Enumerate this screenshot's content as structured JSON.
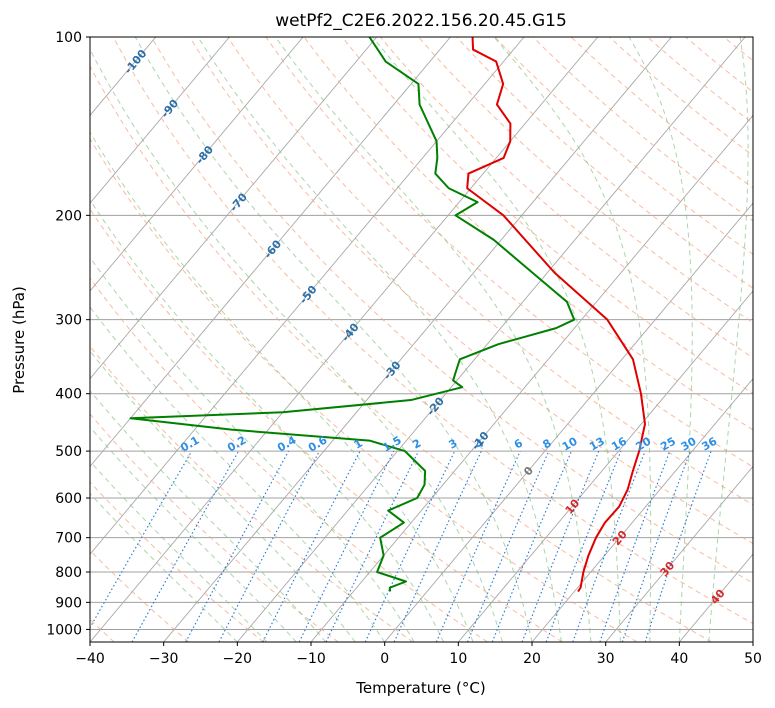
{
  "chart_data": {
    "type": "line",
    "title": "wetPf2_C2E6.2022.156.20.45.G15",
    "xlabel": "Temperature (°C)",
    "ylabel": "Pressure (hPa)",
    "xlim": [
      -40,
      50
    ],
    "ylim": [
      1050,
      100
    ],
    "yscale": "log",
    "skew_degrees_per_log10": 67.5,
    "x_ticks": [
      "−40",
      "−30",
      "−20",
      "−10",
      "0",
      "10",
      "20",
      "30",
      "40",
      "50"
    ],
    "x_tick_values": [
      -40,
      -30,
      -20,
      -10,
      0,
      10,
      20,
      30,
      40,
      50
    ],
    "y_ticks": [
      "100",
      "200",
      "300",
      "400",
      "500",
      "600",
      "700",
      "800",
      "900",
      "1000"
    ],
    "y_tick_values": [
      100,
      200,
      300,
      400,
      500,
      600,
      700,
      800,
      900,
      1000
    ],
    "series": [
      {
        "name": "Temperature",
        "color": "#e00000",
        "points": [
          [
            863,
            20.5
          ],
          [
            850,
            20.4
          ],
          [
            800,
            19.0
          ],
          [
            750,
            17.8
          ],
          [
            700,
            16.8
          ],
          [
            660,
            16.3
          ],
          [
            620,
            16.4
          ],
          [
            580,
            15.6
          ],
          [
            540,
            14.2
          ],
          [
            500,
            12.8
          ],
          [
            450,
            10.5
          ],
          [
            400,
            6.5
          ],
          [
            350,
            1.5
          ],
          [
            300,
            -6.5
          ],
          [
            250,
            -19.0
          ],
          [
            200,
            -32.5
          ],
          [
            180,
            -40.5
          ],
          [
            170,
            -42.0
          ],
          [
            160,
            -39.0
          ],
          [
            150,
            -40.0
          ],
          [
            140,
            -42.0
          ],
          [
            130,
            -46.0
          ],
          [
            120,
            -47.5
          ],
          [
            110,
            -51.0
          ],
          [
            105,
            -55.5
          ],
          [
            100,
            -57.0
          ]
        ]
      },
      {
        "name": "Dewpoint",
        "color": "#008000",
        "points": [
          [
            863,
            -5.0
          ],
          [
            850,
            -5.5
          ],
          [
            830,
            -4.0
          ],
          [
            800,
            -9.0
          ],
          [
            750,
            -10.0
          ],
          [
            700,
            -12.5
          ],
          [
            660,
            -11.0
          ],
          [
            630,
            -14.5
          ],
          [
            600,
            -12.0
          ],
          [
            570,
            -12.5
          ],
          [
            540,
            -14.0
          ],
          [
            500,
            -19.0
          ],
          [
            480,
            -25.0
          ],
          [
            460,
            -45.0
          ],
          [
            440,
            -60.0
          ],
          [
            430,
            -40.0
          ],
          [
            410,
            -24.0
          ],
          [
            390,
            -18.5
          ],
          [
            380,
            -20.5
          ],
          [
            370,
            -21.0
          ],
          [
            350,
            -22.0
          ],
          [
            330,
            -18.5
          ],
          [
            310,
            -12.5
          ],
          [
            300,
            -11.0
          ],
          [
            280,
            -14.0
          ],
          [
            250,
            -22.0
          ],
          [
            220,
            -31.0
          ],
          [
            200,
            -39.0
          ],
          [
            190,
            -37.5
          ],
          [
            180,
            -43.0
          ],
          [
            170,
            -46.5
          ],
          [
            160,
            -48.0
          ],
          [
            150,
            -50.0
          ],
          [
            130,
            -56.5
          ],
          [
            120,
            -59.0
          ],
          [
            110,
            -66.0
          ],
          [
            100,
            -71.0
          ]
        ]
      }
    ],
    "dry_adiabat_labels": [
      "-100",
      "-90",
      "-80",
      "-70",
      "-60",
      "-50",
      "-40",
      "-30",
      "-20",
      "-10",
      "0",
      "10",
      "20",
      "30",
      "40"
    ],
    "mixing_ratio_labels": [
      "0.1",
      "0.2",
      "0.4",
      "0.6",
      "1",
      "1.5",
      "2",
      "3",
      "4",
      "6",
      "8",
      "10",
      "13",
      "16",
      "20",
      "25",
      "30",
      "36"
    ],
    "mixing_ratio_values": [
      0.1,
      0.2,
      0.4,
      0.6,
      1,
      1.5,
      2,
      3,
      4,
      6,
      8,
      10,
      13,
      16,
      20,
      25,
      30,
      36
    ]
  }
}
